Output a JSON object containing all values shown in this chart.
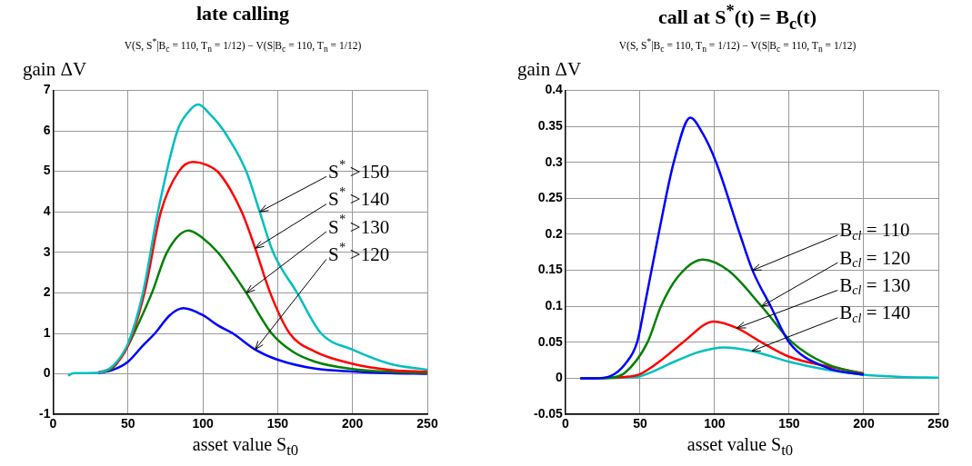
{
  "chart_data": [
    {
      "type": "line",
      "title": "late calling",
      "subtitle": "V(S, S$^{*}$|B$_{c}$ = 110, T$_{n}$ = 1/12) − V(S|B$_{c}$ = 110, T$_{n}$ = 1/12)",
      "ylabel": "gain ΔV",
      "xlabel": "asset value S$_{t0}$",
      "xlim": [
        0,
        250
      ],
      "xticks": [
        0,
        50,
        100,
        150,
        200,
        250
      ],
      "ylim": [
        -1,
        7
      ],
      "yticks": [
        -1,
        0,
        1,
        2,
        3,
        4,
        5,
        6,
        7
      ],
      "grid": true,
      "series": [
        {
          "color": "#00bfbf",
          "x": [
            10,
            12,
            15,
            20,
            30,
            40,
            50,
            60,
            70,
            83,
            90,
            97,
            105,
            114,
            129,
            138,
            147,
            163,
            179,
            200,
            225,
            250
          ],
          "values": [
            -0.05,
            0,
            0.02,
            0.02,
            0.03,
            0.2,
            0.75,
            2.0,
            4.0,
            6.0,
            6.45,
            6.65,
            6.4,
            6.0,
            5.0,
            4.0,
            3.0,
            2.0,
            1.0,
            0.6,
            0.25,
            0.1
          ]
        },
        {
          "color": "#ff0000",
          "x": [
            30,
            40,
            50,
            61,
            72,
            84,
            93.5,
            103,
            111,
            126,
            135,
            145,
            158,
            175,
            200,
            225,
            250
          ],
          "values": [
            0.03,
            0.18,
            0.7,
            2.0,
            4.0,
            5.0,
            5.23,
            5.15,
            4.95,
            4.0,
            3.1,
            2.0,
            1.0,
            0.55,
            0.25,
            0.1,
            0.05
          ]
        },
        {
          "color": "#008000",
          "x": [
            30,
            40,
            50,
            54,
            66,
            76,
            90.5,
            100,
            110,
            120,
            129,
            146,
            160,
            175,
            200,
            225,
            250
          ],
          "values": [
            0.03,
            0.15,
            0.7,
            1.0,
            2.0,
            3.0,
            3.54,
            3.35,
            3.0,
            2.5,
            2.0,
            1.0,
            0.55,
            0.3,
            0.12,
            0.05,
            0.02
          ]
        },
        {
          "color": "#0000ff",
          "x": [
            30,
            40,
            50,
            60,
            68,
            78,
            87,
            100,
            110,
            120,
            135,
            150,
            175,
            200,
            225,
            250
          ],
          "values": [
            0.02,
            0.1,
            0.3,
            0.7,
            1.0,
            1.45,
            1.62,
            1.45,
            1.2,
            1.0,
            0.6,
            0.35,
            0.13,
            0.06,
            0.02,
            0.0
          ]
        }
      ],
      "annotations": [
        {
          "text": "S$^{*}$ >150",
          "x": 138,
          "y": 4.0
        },
        {
          "text": "S$^{*}$ >140",
          "x": 135,
          "y": 3.1
        },
        {
          "text": "S$^{*}$ >130",
          "x": 129,
          "y": 2.0
        },
        {
          "text": "S$^{*}$ >120",
          "x": 135,
          "y": 0.6
        }
      ]
    },
    {
      "type": "line",
      "title": "call at S$^{*}$(t) = B$_{c}$(t)",
      "subtitle": "V(S, S$^{*}$|B$_{c}$ = 110, T$_{n}$ = 1/12) − V(S|B$_{c}$ = 110, T$_{n}$ = 1/12)",
      "ylabel": "gain ΔV",
      "xlabel": "asset value S$_{t0}$",
      "xlim": [
        0,
        250
      ],
      "xticks": [
        0,
        50,
        100,
        150,
        200,
        250
      ],
      "ylim": [
        -0.05,
        0.4
      ],
      "yticks": [
        -0.05,
        0,
        0.05,
        0.1,
        0.15,
        0.2,
        0.25,
        0.3,
        0.35,
        0.4
      ],
      "grid": true,
      "series": [
        {
          "color": "#0000ff",
          "x": [
            10,
            20,
            30,
            40,
            48,
            53,
            62.4,
            72.6,
            83.7,
            92,
            101,
            117,
            125.4,
            137.6,
            150,
            175,
            200
          ],
          "values": [
            0,
            0,
            0.003,
            0.02,
            0.05,
            0.1,
            0.2,
            0.3,
            0.362,
            0.34,
            0.3,
            0.2,
            0.15,
            0.1,
            0.05,
            0.015,
            0.005
          ]
        },
        {
          "color": "#008000",
          "x": [
            10,
            30,
            40,
            55,
            64,
            75,
            92,
            109,
            131.5,
            152,
            175,
            200
          ],
          "values": [
            0,
            0.001,
            0.008,
            0.05,
            0.1,
            0.14,
            0.165,
            0.15,
            0.1,
            0.05,
            0.02,
            0.006
          ]
        },
        {
          "color": "#ff0000",
          "x": [
            10,
            40,
            50,
            64,
            78.7,
            99.4,
            115,
            131.5,
            150,
            175,
            200
          ],
          "values": [
            0,
            0.002,
            0.006,
            0.025,
            0.05,
            0.079,
            0.07,
            0.05,
            0.03,
            0.017,
            0.007
          ]
        },
        {
          "color": "#00bfbf",
          "x": [
            10,
            40,
            50,
            75,
            90,
            106,
            125,
            150,
            175,
            200,
            225,
            250
          ],
          "values": [
            0,
            0.001,
            0.003,
            0.025,
            0.037,
            0.043,
            0.038,
            0.023,
            0.012,
            0.005,
            0.002,
            0.001
          ]
        }
      ],
      "annotations": [
        {
          "text": "B$_{cl}$ = 110",
          "x": 125.4,
          "y": 0.15
        },
        {
          "text": "B$_{cl}$ = 120",
          "x": 131.5,
          "y": 0.1
        },
        {
          "text": "B$_{cl}$ = 130",
          "x": 115,
          "y": 0.07
        },
        {
          "text": "B$_{cl}$ = 140",
          "x": 125,
          "y": 0.038
        }
      ]
    }
  ]
}
